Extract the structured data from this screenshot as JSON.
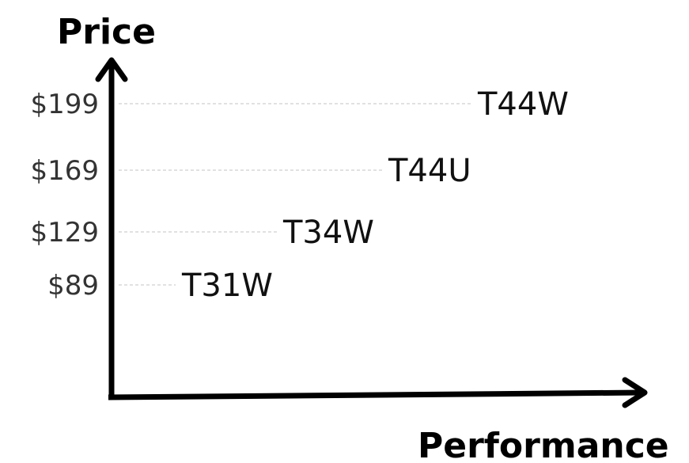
{
  "chart_data": {
    "type": "scatter",
    "title": "",
    "xlabel": "Performance",
    "ylabel": "Price",
    "grid": false,
    "legend": "none",
    "y_ticks": [
      "$199",
      "$169",
      "$129",
      "$89"
    ],
    "points": [
      {
        "label": "T31W",
        "price": 89
      },
      {
        "label": "T34W",
        "price": 129
      },
      {
        "label": "T44U",
        "price": 169
      },
      {
        "label": "T44W",
        "price": 199
      }
    ],
    "colors": {
      "axis": "#000000",
      "guide": "#cfcfcf",
      "tick_text": "#333333",
      "label_text": "#111111"
    }
  }
}
